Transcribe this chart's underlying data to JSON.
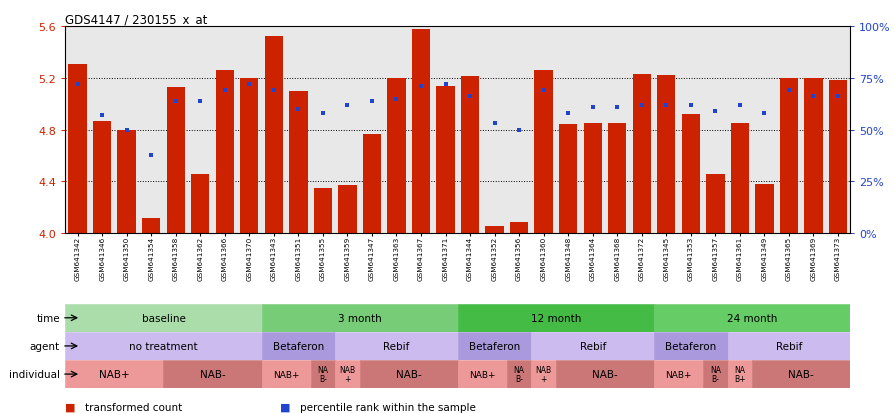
{
  "title": "GDS4147 / 230155_x_at",
  "samples": [
    "GSM641342",
    "GSM641346",
    "GSM641350",
    "GSM641354",
    "GSM641358",
    "GSM641362",
    "GSM641366",
    "GSM641370",
    "GSM641343",
    "GSM641351",
    "GSM641355",
    "GSM641359",
    "GSM641347",
    "GSM641363",
    "GSM641367",
    "GSM641371",
    "GSM641344",
    "GSM641352",
    "GSM641356",
    "GSM641360",
    "GSM641348",
    "GSM641364",
    "GSM641368",
    "GSM641372",
    "GSM641345",
    "GSM641353",
    "GSM641357",
    "GSM641361",
    "GSM641349",
    "GSM641365",
    "GSM641369",
    "GSM641373"
  ],
  "bar_values": [
    5.31,
    4.87,
    4.8,
    4.12,
    5.13,
    4.46,
    5.26,
    5.2,
    5.52,
    5.1,
    4.35,
    4.37,
    4.77,
    5.2,
    5.58,
    5.14,
    5.21,
    4.06,
    4.09,
    5.26,
    4.84,
    4.85,
    4.85,
    5.23,
    5.22,
    4.92,
    4.46,
    4.85,
    4.38,
    5.2,
    5.2,
    5.18
  ],
  "blue_pct": [
    0.72,
    0.57,
    0.5,
    0.38,
    0.64,
    0.64,
    0.69,
    0.72,
    0.69,
    0.6,
    0.58,
    0.62,
    0.64,
    0.65,
    0.71,
    0.72,
    0.66,
    0.53,
    0.5,
    0.69,
    0.58,
    0.61,
    0.61,
    0.62,
    0.62,
    0.62,
    0.59,
    0.62,
    0.58,
    0.69,
    0.66,
    0.66
  ],
  "ylim": [
    4.0,
    5.6
  ],
  "yticks_left": [
    4.0,
    4.4,
    4.8,
    5.2,
    5.6
  ],
  "yticks_right": [
    0,
    25,
    50,
    75,
    100
  ],
  "bar_color": "#cc2200",
  "blue_color": "#2244cc",
  "bg_color": "#e8e8e8",
  "hlines": [
    4.4,
    4.8,
    5.2
  ],
  "time_rows": [
    {
      "label": "baseline",
      "start": 0,
      "end": 8,
      "color": "#aaddaa"
    },
    {
      "label": "3 month",
      "start": 8,
      "end": 16,
      "color": "#77cc77"
    },
    {
      "label": "12 month",
      "start": 16,
      "end": 24,
      "color": "#44bb44"
    },
    {
      "label": "24 month",
      "start": 24,
      "end": 32,
      "color": "#66cc66"
    }
  ],
  "agent_rows": [
    {
      "label": "no treatment",
      "start": 0,
      "end": 8,
      "color": "#ccbbee"
    },
    {
      "label": "Betaferon",
      "start": 8,
      "end": 11,
      "color": "#aa99dd"
    },
    {
      "label": "Rebif",
      "start": 11,
      "end": 16,
      "color": "#ccbbee"
    },
    {
      "label": "Betaferon",
      "start": 16,
      "end": 19,
      "color": "#aa99dd"
    },
    {
      "label": "Rebif",
      "start": 19,
      "end": 24,
      "color": "#ccbbee"
    },
    {
      "label": "Betaferon",
      "start": 24,
      "end": 27,
      "color": "#aa99dd"
    },
    {
      "label": "Rebif",
      "start": 27,
      "end": 32,
      "color": "#ccbbee"
    }
  ],
  "ind_rows": [
    {
      "label": "NAB+",
      "start": 0,
      "end": 4,
      "color": "#ee9999"
    },
    {
      "label": "NAB-",
      "start": 4,
      "end": 8,
      "color": "#cc7777"
    },
    {
      "label": "NAB+",
      "start": 8,
      "end": 10,
      "color": "#ee9999"
    },
    {
      "label": "NA\nB-",
      "start": 10,
      "end": 11,
      "color": "#cc7777"
    },
    {
      "label": "NAB\n+",
      "start": 11,
      "end": 12,
      "color": "#ee9999"
    },
    {
      "label": "NAB-",
      "start": 12,
      "end": 16,
      "color": "#cc7777"
    },
    {
      "label": "NAB+",
      "start": 16,
      "end": 18,
      "color": "#ee9999"
    },
    {
      "label": "NA\nB-",
      "start": 18,
      "end": 19,
      "color": "#cc7777"
    },
    {
      "label": "NAB\n+",
      "start": 19,
      "end": 20,
      "color": "#ee9999"
    },
    {
      "label": "NAB-",
      "start": 20,
      "end": 24,
      "color": "#cc7777"
    },
    {
      "label": "NAB+",
      "start": 24,
      "end": 26,
      "color": "#ee9999"
    },
    {
      "label": "NA\nB-",
      "start": 26,
      "end": 27,
      "color": "#cc7777"
    },
    {
      "label": "NA\nB+",
      "start": 27,
      "end": 28,
      "color": "#ee9999"
    },
    {
      "label": "NAB-",
      "start": 28,
      "end": 32,
      "color": "#cc7777"
    }
  ],
  "legend": [
    {
      "label": "transformed count",
      "color": "#cc2200"
    },
    {
      "label": "percentile rank within the sample",
      "color": "#2244cc"
    }
  ],
  "n": 32
}
